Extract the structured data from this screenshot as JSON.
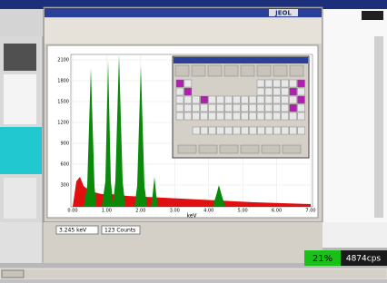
{
  "title_bar": {
    "logo": "JEOL"
  },
  "spectrum": {
    "x_axis_label": "keV",
    "x_ticks": [
      "0.00",
      "1.00",
      "2.00",
      "3.00",
      "4.00",
      "5.00",
      "6.00",
      "7.00"
    ],
    "y_ticks": [
      "2100",
      "1800",
      "1500",
      "1200",
      "900",
      "600",
      "300"
    ]
  },
  "status": {
    "energy": "3.245 keV",
    "counts": "123 Counts"
  },
  "meter": {
    "percent": "21%",
    "rate": "4874cps"
  }
}
